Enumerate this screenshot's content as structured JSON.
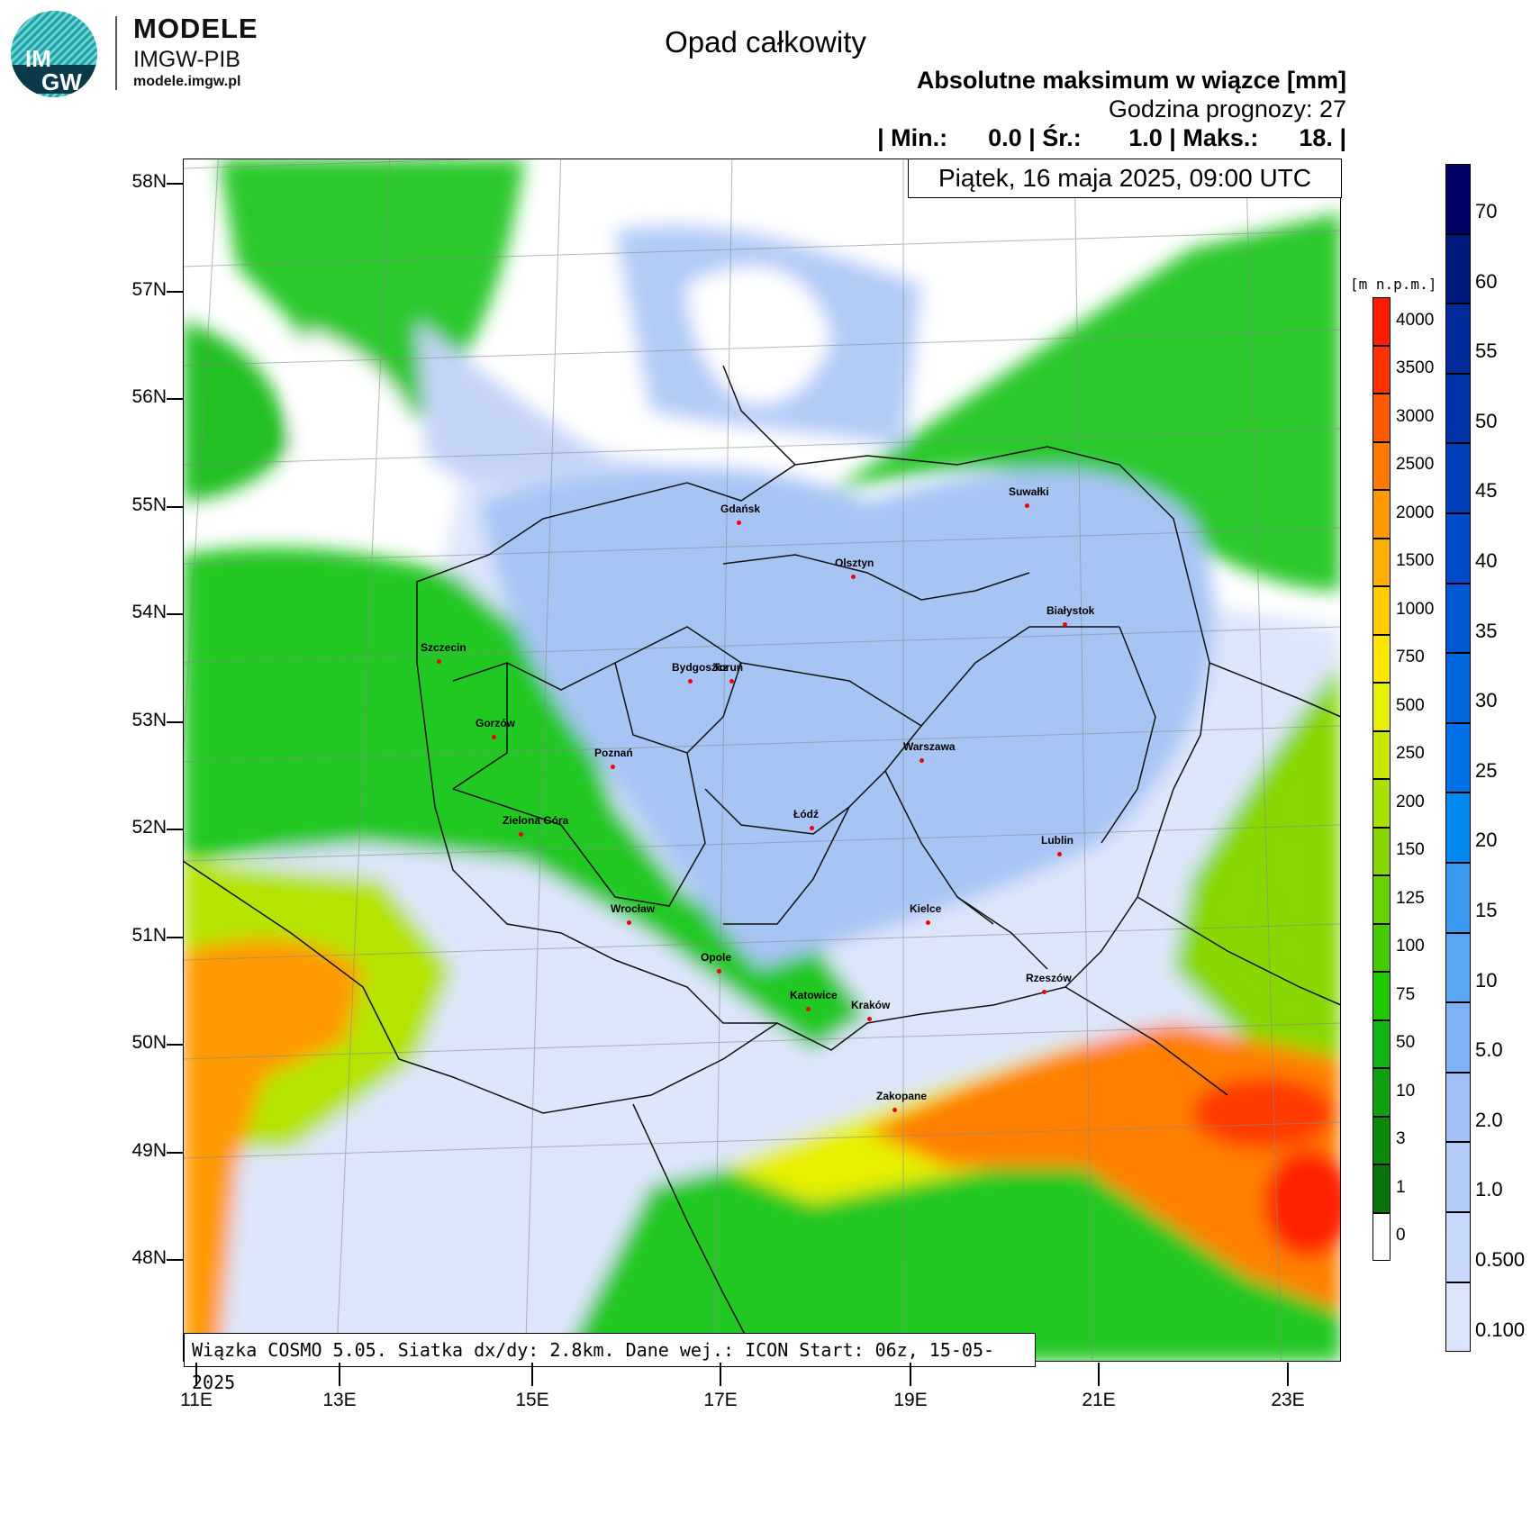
{
  "logo": {
    "text_top": "IM",
    "text_bottom": "GW",
    "brand_line1": "MODELE",
    "brand_line2": "IMGW-PIB",
    "brand_url": "modele.imgw.pl"
  },
  "title": "Opad całkowity",
  "header": {
    "subtitle": "Absolutne maksimum w wiązce [mm]",
    "forecast_hour": "Godzina prognozy: 27",
    "stats": "| Min.:      0.0 | Śr.:       1.0 | Maks.:      18. |"
  },
  "date_label": "Piątek, 16 maja 2025, 09:00 UTC",
  "footer": "Wiązka COSMO 5.05. Siatka dx/dy: 2.8km. Dane wej.: ICON Start: 06z, 15-05-2025",
  "axes": {
    "lat_labels": [
      "58N",
      "57N",
      "56N",
      "55N",
      "54N",
      "53N",
      "52N",
      "51N",
      "50N",
      "49N",
      "48N"
    ],
    "lon_labels": [
      "11E",
      "13E",
      "15E",
      "17E",
      "19E",
      "21E",
      "23E"
    ]
  },
  "cities": [
    {
      "name": "Gdańsk"
    },
    {
      "name": "Olsztyn"
    },
    {
      "name": "Suwałki"
    },
    {
      "name": "Białystok"
    },
    {
      "name": "Szczecin"
    },
    {
      "name": "Bydgoszcz"
    },
    {
      "name": "Toruń"
    },
    {
      "name": "Gorzów"
    },
    {
      "name": "Poznań"
    },
    {
      "name": "Warszawa"
    },
    {
      "name": "Zielona Góra"
    },
    {
      "name": "Łódź"
    },
    {
      "name": "Lublin"
    },
    {
      "name": "Wrocław"
    },
    {
      "name": "Kielce"
    },
    {
      "name": "Opole"
    },
    {
      "name": "Rzeszów"
    },
    {
      "name": "Katowice"
    },
    {
      "name": "Kraków"
    },
    {
      "name": "Zakopane"
    }
  ],
  "elevation_legend": {
    "title": "[m n.p.m.]",
    "labels": [
      "4000",
      "3500",
      "3000",
      "2500",
      "2000",
      "1500",
      "1000",
      "750",
      "500",
      "250",
      "200",
      "150",
      "125",
      "100",
      "75",
      "50",
      "10",
      "3",
      "1",
      "0"
    ],
    "colors": [
      "#ff1a00",
      "#ff3300",
      "#ff5a00",
      "#ff7a00",
      "#ff9a00",
      "#ffb000",
      "#ffcc00",
      "#ffe600",
      "#e6f000",
      "#c8e800",
      "#a8e000",
      "#88d800",
      "#66d200",
      "#44cc00",
      "#22c800",
      "#14b414",
      "#0fa00f",
      "#0a8a0a",
      "#087308",
      "#ffffff"
    ]
  },
  "precip_legend": {
    "labels": [
      "70",
      "60",
      "55",
      "50",
      "45",
      "40",
      "35",
      "30",
      "25",
      "20",
      "15",
      "10",
      "5.0",
      "2.0",
      "1.0",
      "0.500",
      "0.100"
    ],
    "colors": [
      "#000066",
      "#001a80",
      "#002a99",
      "#0033a8",
      "#0040b8",
      "#004cc8",
      "#0058d4",
      "#0066dd",
      "#0070e6",
      "#0088ee",
      "#3a99f0",
      "#5aa6f2",
      "#7fb3f5",
      "#9fbff5",
      "#b3ccf7",
      "#c8d8fa",
      "#dce4fb"
    ]
  },
  "colors": {
    "sea": "#ffffff",
    "land_green": "#22c822",
    "land_blue": "#a8c4f5",
    "light_blue": "#dde6fb",
    "orange": "#ff9a00"
  }
}
